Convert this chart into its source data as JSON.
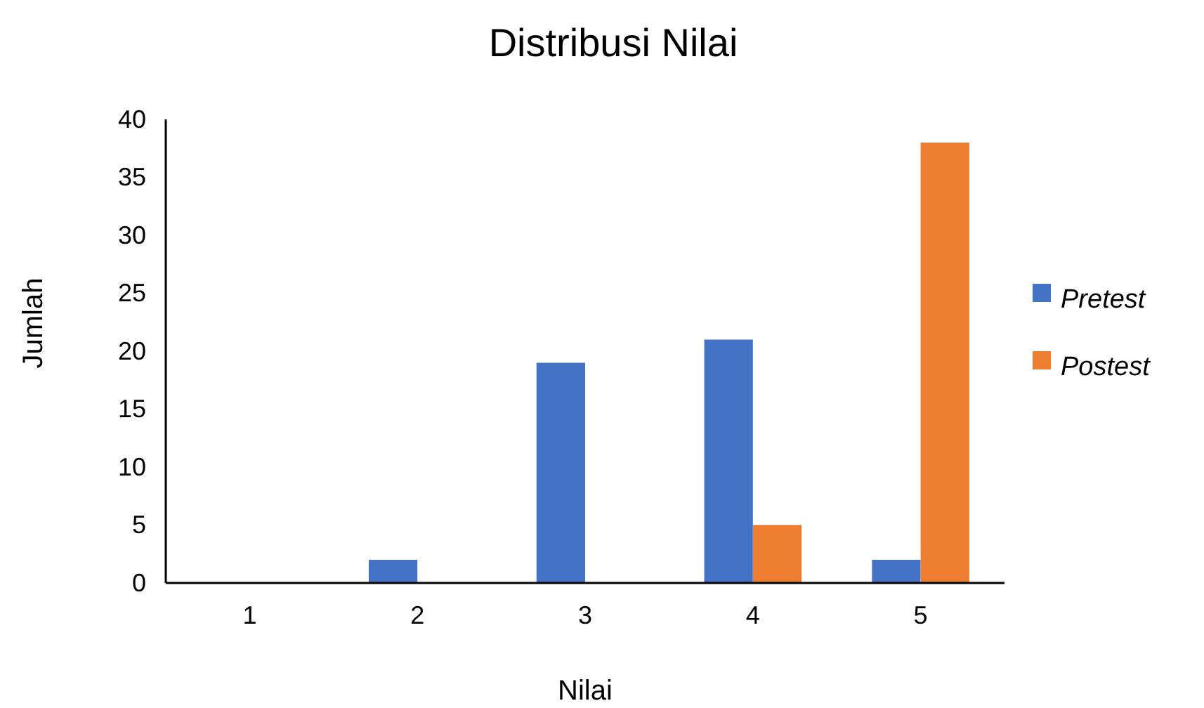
{
  "chart_data": {
    "type": "bar",
    "title": "Distribusi Nilai",
    "xlabel": "Nilai",
    "ylabel": "Jumlah",
    "categories": [
      "1",
      "2",
      "3",
      "4",
      "5"
    ],
    "series": [
      {
        "name": "Pretest",
        "color": "#4472c4",
        "values": [
          0,
          2,
          19,
          21,
          2
        ]
      },
      {
        "name": "Postest",
        "color": "#ed7d31",
        "values": [
          0,
          0,
          0,
          5,
          38
        ]
      }
    ],
    "ylim": [
      0,
      40
    ],
    "yticks": [
      0,
      5,
      10,
      15,
      20,
      25,
      30,
      35,
      40
    ],
    "grid": false,
    "legend": "right"
  }
}
